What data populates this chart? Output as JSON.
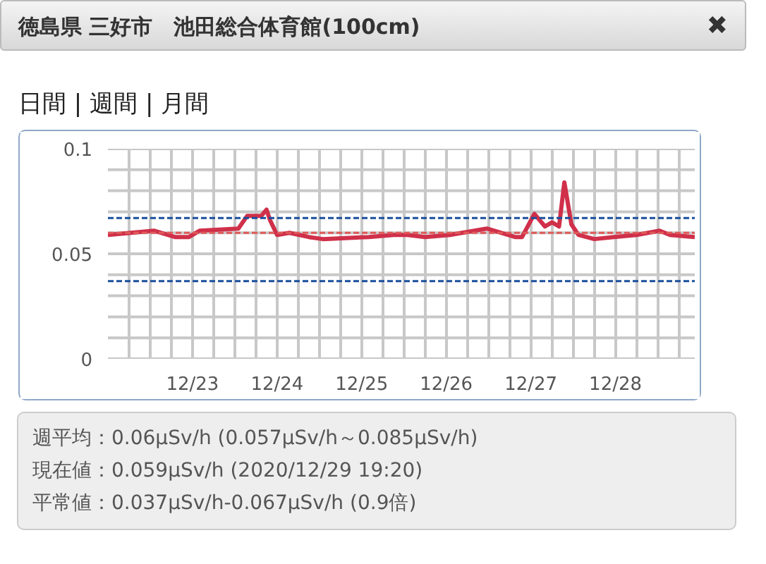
{
  "chart_data": {
    "type": "line",
    "title": "徳島県 三好市　池田総合体育館(100cm)",
    "annotations": [
      "日間 | 週間 | 月間",
      "週平均：0.06μSv/h (0.057μSv/h～0.085μSv/h)",
      "現在値：0.059μSv/h (2020/12/29 19:20)",
      "平常値：0.037μSv/h-0.067μSv/h (0.9倍)",
      "✖"
    ],
    "x": [
      "2020-12-22T00:00",
      "2020-12-22T13:00",
      "2020-12-22T19:00",
      "2020-12-22T23:00",
      "2020-12-23T02:00",
      "2020-12-23T13:00",
      "2020-12-23T15:30",
      "2020-12-23T19:30",
      "2020-12-23T21:00",
      "2020-12-23T22:00",
      "2020-12-24T00:00",
      "2020-12-24T03:30",
      "2020-12-24T09:00",
      "2020-12-24T13:00",
      "2020-12-25T02:00",
      "2020-12-25T09:00",
      "2020-12-25T13:00",
      "2020-12-25T18:00",
      "2020-12-26T01:00",
      "2020-12-26T11:30",
      "2020-12-26T19:30",
      "2020-12-26T21:30",
      "2020-12-27T01:00",
      "2020-12-27T04:00",
      "2020-12-27T06:00",
      "2020-12-27T08:00",
      "2020-12-27T09:30",
      "2020-12-27T11:30",
      "2020-12-27T13:30",
      "2020-12-27T18:00",
      "2020-12-27T23:30",
      "2020-12-28T06:00",
      "2020-12-28T12:30",
      "2020-12-28T15:30",
      "2020-12-28T22:30"
    ],
    "series": [
      {
        "color": "#d0304a",
        "values": [
          0.059,
          0.061,
          0.058,
          0.058,
          0.061,
          0.062,
          0.068,
          0.068,
          0.071,
          0.066,
          0.059,
          0.06,
          0.058,
          0.057,
          0.058,
          0.059,
          0.059,
          0.058,
          0.059,
          0.062,
          0.058,
          0.058,
          0.069,
          0.063,
          0.065,
          0.063,
          0.084,
          0.064,
          0.059,
          0.057,
          0.058,
          0.059,
          0.061,
          0.059,
          0.058
        ]
      }
    ],
    "xlim": [
      "2020-12-22T00:00",
      "2020-12-28T22:30"
    ],
    "xticks": [
      {
        "value": "2020-12-22T06:00",
        "label": null
      },
      {
        "value": "2020-12-22T12:00",
        "label": null
      },
      {
        "value": "2020-12-22T18:00",
        "label": null
      },
      {
        "value": "2020-12-23T00:00",
        "label": "12/23"
      },
      {
        "value": "2020-12-23T06:00",
        "label": null
      },
      {
        "value": "2020-12-23T12:00",
        "label": null
      },
      {
        "value": "2020-12-23T18:00",
        "label": null
      },
      {
        "value": "2020-12-24T00:00",
        "label": "12/24"
      },
      {
        "value": "2020-12-24T06:00",
        "label": null
      },
      {
        "value": "2020-12-24T12:00",
        "label": null
      },
      {
        "value": "2020-12-24T18:00",
        "label": null
      },
      {
        "value": "2020-12-25T00:00",
        "label": "12/25"
      },
      {
        "value": "2020-12-25T06:00",
        "label": null
      },
      {
        "value": "2020-12-25T12:00",
        "label": null
      },
      {
        "value": "2020-12-25T18:00",
        "label": null
      },
      {
        "value": "2020-12-26T00:00",
        "label": "12/26"
      },
      {
        "value": "2020-12-26T06:00",
        "label": null
      },
      {
        "value": "2020-12-26T12:00",
        "label": null
      },
      {
        "value": "2020-12-26T18:00",
        "label": null
      },
      {
        "value": "2020-12-27T00:00",
        "label": "12/27"
      },
      {
        "value": "2020-12-27T06:00",
        "label": null
      },
      {
        "value": "2020-12-27T12:00",
        "label": null
      },
      {
        "value": "2020-12-27T18:00",
        "label": null
      },
      {
        "value": "2020-12-28T00:00",
        "label": "12/28"
      },
      {
        "value": "2020-12-28T06:00",
        "label": null
      },
      {
        "value": "2020-12-28T12:00",
        "label": null
      },
      {
        "value": "2020-12-28T18:00",
        "label": null
      }
    ],
    "ylim": [
      0,
      0.1
    ],
    "yticks": [
      0,
      {
        "value": 0.01,
        "label": null
      },
      {
        "value": 0.02,
        "label": null
      },
      {
        "value": 0.03,
        "label": null
      },
      {
        "value": 0.04,
        "label": null
      },
      0.05,
      {
        "value": 0.06,
        "label": null
      },
      {
        "value": 0.07,
        "label": null
      },
      {
        "value": 0.08,
        "label": null
      },
      {
        "value": 0.09,
        "label": null
      },
      0.1
    ],
    "ref_lines": [
      {
        "axis": "y",
        "value": 0.067,
        "color": "#1a4f9c",
        "line_style": "dashed"
      },
      {
        "axis": "y",
        "value": 0.037,
        "color": "#1a4f9c",
        "line_style": "dashed"
      },
      {
        "axis": "y",
        "value": 0.06,
        "color": "#e05a5a",
        "line_style": "dashed"
      }
    ],
    "grid": true,
    "marker": "none",
    "line_style": "solid"
  }
}
